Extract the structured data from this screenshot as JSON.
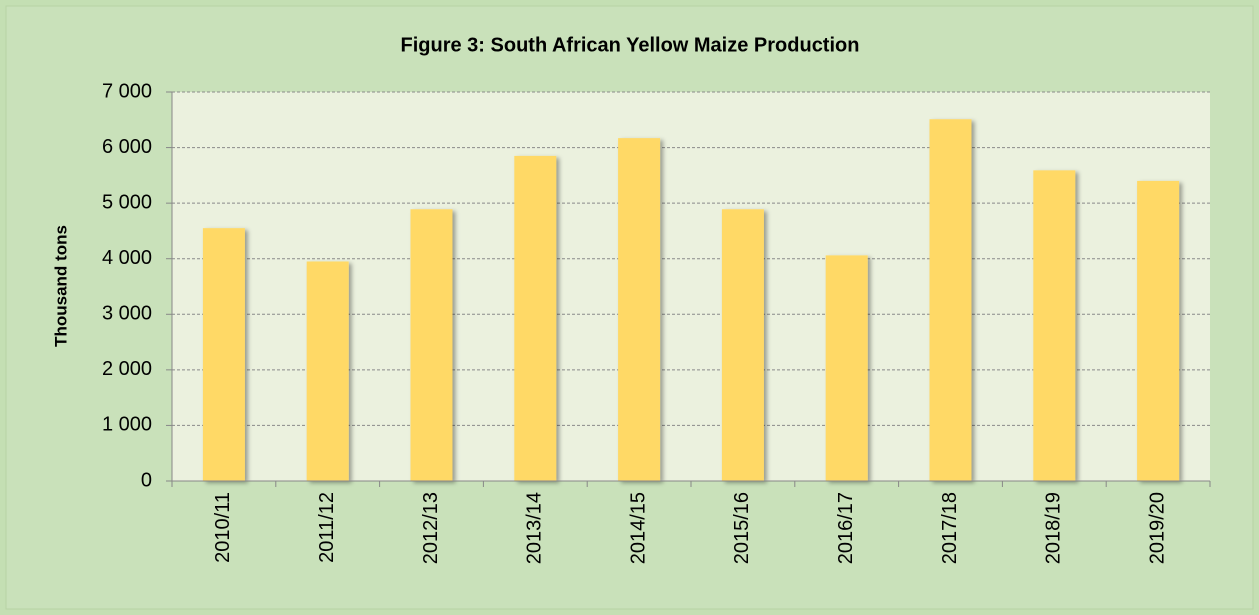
{
  "chart_data": {
    "type": "bar",
    "title": "Figure 3: South African Yellow Maize Production",
    "y_label": "Thousand tons",
    "categories": [
      "2010/11",
      "2011/12",
      "2012/13",
      "2013/14",
      "2014/15",
      "2015/16",
      "2016/17",
      "2017/18",
      "2018/19",
      "2019/20"
    ],
    "values": [
      4550,
      3950,
      4890,
      5850,
      6170,
      4890,
      4060,
      6510,
      5590,
      5400
    ],
    "color": "#ffd966",
    "ylim": [
      0,
      7000
    ],
    "yticks": [
      0,
      {
        "value": 1000,
        "label": "1 000"
      },
      {
        "value": 2000,
        "label": "2 000"
      },
      {
        "value": 3000,
        "label": "3 000"
      },
      {
        "value": 4000,
        "label": "4 000"
      },
      {
        "value": 5000,
        "label": "5 000"
      },
      {
        "value": 6000,
        "label": "6 000"
      },
      {
        "value": 7000,
        "label": "7 000"
      }
    ],
    "grid": true
  }
}
